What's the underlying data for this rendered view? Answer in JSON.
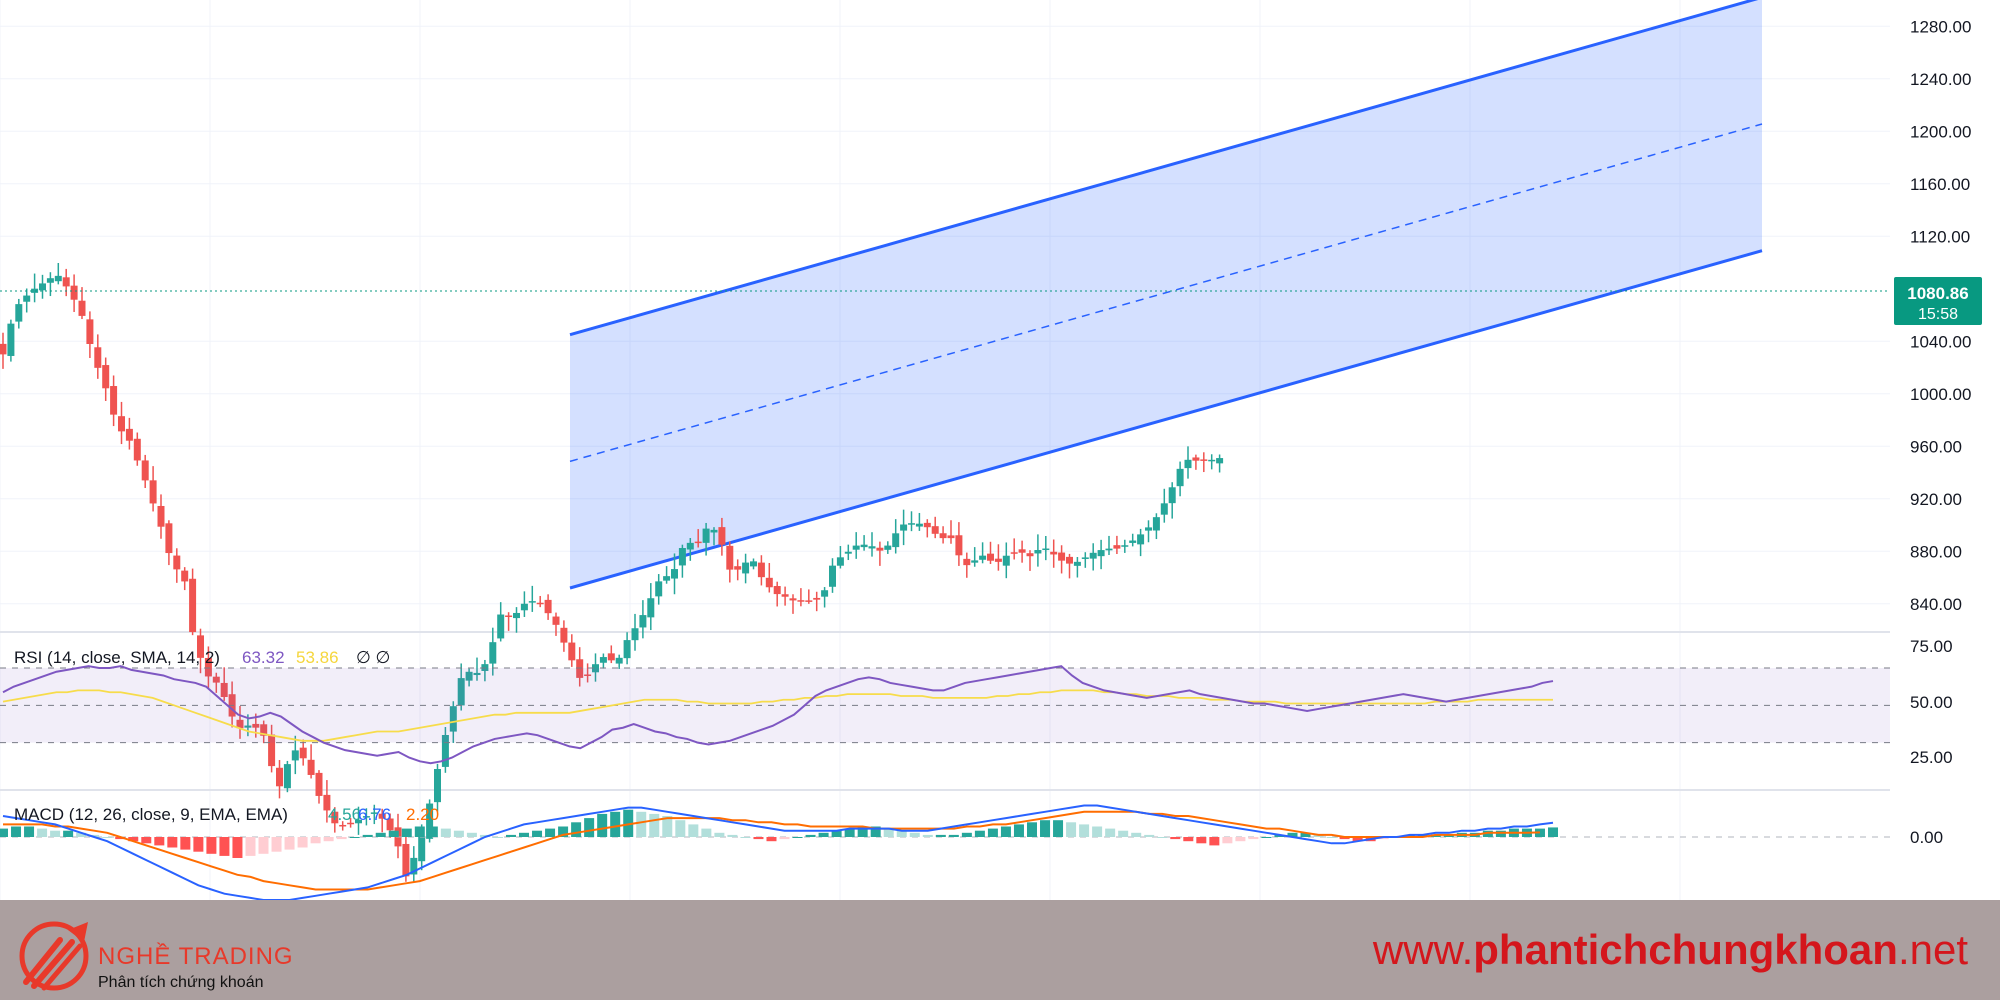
{
  "price_axis": {
    "labels": [
      "1280.00",
      "1240.00",
      "1200.00",
      "1160.00",
      "1120.00",
      "1040.00",
      "1000.00",
      "960.00",
      "920.00",
      "880.00",
      "840.00"
    ],
    "values": [
      1280,
      1240,
      1200,
      1160,
      1120,
      1040,
      1000,
      960,
      920,
      880,
      840
    ]
  },
  "last_price": {
    "value": "1080.86",
    "countdown": "15:58",
    "color": "#089981"
  },
  "colors": {
    "up": "#26a69a",
    "down": "#ef5350",
    "channel": "#2962ff",
    "rsi": "#7e57c2",
    "rsi_ma": "#f7dc4b",
    "macd": "#2962ff",
    "signal": "#ff6d00"
  },
  "rsi_pane": {
    "label": "RSI (14, close, SMA, 14, 2)",
    "value": "63.32",
    "ma_value": "53.86",
    "extra": "∅ ∅",
    "axis_labels": [
      "75.00",
      "50.00",
      "25.00"
    ],
    "axis_values": [
      75,
      50,
      25
    ]
  },
  "macd_pane": {
    "label": "MACD (12, 26, close, 9, EMA, EMA)",
    "hist_value": "4.56",
    "macd_value": "6.76",
    "signal_value": "2.20",
    "axis_labels": [
      "0.00"
    ]
  },
  "chart_data": {
    "type": "candlestick",
    "ylim": [
      820,
      1300
    ],
    "price_points": [
      [
        0,
        1030
      ],
      [
        3,
        1065
      ],
      [
        7,
        1078
      ],
      [
        12,
        1088
      ],
      [
        14,
        1090
      ],
      [
        17,
        1078
      ],
      [
        20,
        1060
      ],
      [
        23,
        1028
      ],
      [
        26,
        1005
      ],
      [
        29,
        975
      ],
      [
        32,
        965
      ],
      [
        36,
        935
      ],
      [
        40,
        900
      ],
      [
        43,
        870
      ],
      [
        46,
        860
      ],
      [
        48,
        820
      ],
      [
        50,
        800
      ],
      [
        52,
        785
      ],
      [
        55,
        778
      ],
      [
        58,
        755
      ],
      [
        60,
        745
      ],
      [
        63,
        748
      ],
      [
        66,
        742
      ],
      [
        68,
        718
      ],
      [
        71,
        695
      ],
      [
        73,
        732
      ],
      [
        77,
        720
      ],
      [
        80,
        695
      ],
      [
        84,
        673
      ],
      [
        87,
        670
      ],
      [
        90,
        675
      ],
      [
        95,
        682
      ],
      [
        100,
        660
      ],
      [
        102,
        630
      ],
      [
        106,
        658
      ],
      [
        109,
        696
      ],
      [
        112,
        736
      ],
      [
        114,
        758
      ],
      [
        117,
        790
      ],
      [
        120,
        786
      ],
      [
        123,
        796
      ],
      [
        127,
        838
      ],
      [
        129,
        828
      ],
      [
        133,
        842
      ],
      [
        136,
        842
      ],
      [
        140,
        827
      ],
      [
        144,
        800
      ],
      [
        147,
        780
      ],
      [
        152,
        800
      ],
      [
        156,
        795
      ],
      [
        158,
        810
      ],
      [
        162,
        828
      ],
      [
        167,
        860
      ],
      [
        170,
        862
      ],
      [
        173,
        886
      ],
      [
        177,
        887
      ],
      [
        179,
        900
      ],
      [
        182,
        893
      ],
      [
        184,
        866
      ],
      [
        187,
        866
      ],
      [
        190,
        876
      ],
      [
        193,
        858
      ],
      [
        196,
        848
      ],
      [
        199,
        845
      ],
      [
        201,
        842
      ],
      [
        205,
        842
      ],
      [
        208,
        844
      ],
      [
        211,
        872
      ],
      [
        214,
        878
      ],
      [
        217,
        885
      ],
      [
        220,
        885
      ],
      [
        223,
        880
      ],
      [
        225,
        885
      ],
      [
        228,
        900
      ],
      [
        232,
        902
      ],
      [
        235,
        898
      ],
      [
        238,
        890
      ],
      [
        241,
        890
      ],
      [
        244,
        868
      ],
      [
        249,
        877
      ],
      [
        252,
        870
      ],
      [
        255,
        877
      ],
      [
        258,
        880
      ],
      [
        261,
        876
      ],
      [
        264,
        884
      ],
      [
        268,
        875
      ],
      [
        270,
        870
      ],
      [
        273,
        872
      ],
      [
        277,
        879
      ],
      [
        280,
        882
      ],
      [
        283,
        882
      ],
      [
        286,
        886
      ],
      [
        289,
        893
      ],
      [
        292,
        901
      ],
      [
        296,
        922
      ],
      [
        300,
        950
      ],
      [
        303,
        949
      ],
      [
        306,
        949
      ],
      [
        309,
        951
      ]
    ],
    "channel": {
      "upper": [
        [
          1,
          1045
        ],
        [
          236,
          1302
        ]
      ],
      "lower": [
        [
          1,
          852
        ],
        [
          236,
          1109
        ]
      ],
      "mid": [
        [
          1,
          948.5
        ],
        [
          236,
          1205.5
        ]
      ]
    },
    "rsi": {
      "ylim": [
        10,
        85
      ],
      "values": [
        57,
        60,
        62,
        64,
        66,
        68,
        69,
        70,
        71,
        70,
        70,
        71,
        69,
        68,
        67,
        66,
        64,
        63,
        62,
        60,
        55,
        50,
        45,
        43,
        44,
        46,
        44,
        40,
        36,
        33,
        30,
        28,
        26,
        25,
        24,
        23,
        24,
        25,
        22,
        20,
        19,
        20,
        22,
        25,
        28,
        30,
        32,
        33,
        34,
        35,
        34,
        32,
        30,
        28,
        27,
        30,
        33,
        37,
        38,
        40,
        38,
        36,
        35,
        33,
        32,
        30,
        29,
        30,
        31,
        33,
        35,
        37,
        39,
        42,
        45,
        50,
        55,
        58,
        60,
        62,
        64,
        65,
        64,
        62,
        61,
        60,
        59,
        58,
        58,
        60,
        62,
        63,
        64,
        65,
        66,
        67,
        68,
        69,
        70,
        71,
        66,
        62,
        60,
        58,
        57,
        56,
        55,
        54,
        55,
        56,
        57,
        58,
        56,
        55,
        54,
        53,
        52,
        51,
        51,
        50,
        49,
        48,
        47,
        48,
        49,
        50,
        51,
        52,
        53,
        54,
        55,
        56,
        55,
        54,
        53,
        52,
        53,
        54,
        55,
        56,
        57,
        58,
        59,
        60,
        62,
        63
      ],
      "ma_values": [
        52,
        53,
        54,
        55,
        56,
        57,
        57,
        58,
        58,
        58,
        57,
        57,
        56,
        55,
        54,
        52,
        50,
        48,
        46,
        44,
        42,
        40,
        38,
        36,
        35,
        34,
        33,
        32,
        31,
        31,
        31,
        32,
        33,
        34,
        35,
        36,
        36,
        36,
        37,
        38,
        39,
        40,
        41,
        42,
        43,
        44,
        45,
        45,
        46,
        46,
        46,
        46,
        46,
        46,
        47,
        48,
        49,
        50,
        51,
        52,
        53,
        53,
        53,
        53,
        52,
        52,
        51,
        51,
        51,
        51,
        51,
        52,
        52,
        53,
        53,
        54,
        54,
        55,
        55,
        56,
        56,
        56,
        56,
        56,
        55,
        55,
        55,
        54,
        54,
        54,
        54,
        54,
        54,
        55,
        55,
        56,
        56,
        57,
        57,
        58,
        58,
        58,
        58,
        57,
        57,
        56,
        56,
        55,
        55,
        55,
        54,
        54,
        54,
        53,
        53,
        53,
        52,
        52,
        52,
        52,
        51,
        51,
        51,
        51,
        51,
        51,
        51,
        51,
        51,
        51,
        51,
        51,
        51,
        51,
        52,
        52,
        52,
        52,
        53,
        53,
        53,
        53,
        53,
        53,
        53,
        53
      ]
    },
    "macd": {
      "ylim": [
        -30,
        20
      ],
      "hist": [
        4,
        5,
        5,
        4,
        3,
        3,
        2,
        1,
        0,
        -1,
        -2,
        -3,
        -4,
        -5,
        -6,
        -7,
        -8,
        -9,
        -10,
        -9,
        -8,
        -7,
        -6,
        -5,
        -3,
        -2,
        -1,
        0,
        1,
        2,
        3,
        4,
        5,
        5,
        4,
        3,
        2,
        1,
        0,
        1,
        2,
        3,
        4,
        5,
        7,
        9,
        11,
        12,
        13,
        12,
        11,
        10,
        8,
        6,
        4,
        2,
        1,
        0,
        -1,
        -2,
        -1,
        0,
        1,
        2,
        3,
        4,
        5,
        5,
        4,
        3,
        2,
        1,
        1,
        1,
        2,
        3,
        4,
        5,
        6,
        7,
        8,
        8,
        7,
        6,
        5,
        4,
        3,
        2,
        1,
        0,
        -1,
        -2,
        -3,
        -4,
        -3,
        -2,
        -1,
        0,
        1,
        2,
        2,
        1,
        0,
        -1,
        -2,
        -2,
        -1,
        0,
        1,
        1,
        1,
        1,
        2,
        2,
        3,
        3,
        4,
        4,
        4,
        4.56
      ],
      "macd": [
        10,
        9,
        8,
        7,
        6,
        4,
        2,
        0,
        -2,
        -5,
        -8,
        -11,
        -14,
        -17,
        -20,
        -23,
        -25,
        -27,
        -28,
        -29,
        -30,
        -30,
        -30,
        -29,
        -28,
        -27,
        -26,
        -25,
        -24,
        -22,
        -20,
        -18,
        -15,
        -12,
        -9,
        -6,
        -3,
        0,
        2,
        4,
        6,
        7,
        8,
        9,
        10,
        11,
        12,
        13,
        14,
        14,
        13,
        12,
        11,
        10,
        9,
        8,
        7,
        6,
        5,
        4,
        3,
        3,
        3,
        3,
        3,
        4,
        4,
        4,
        4,
        3,
        3,
        3,
        4,
        5,
        6,
        7,
        8,
        9,
        10,
        11,
        12,
        13,
        14,
        15,
        15,
        14,
        13,
        12,
        11,
        10,
        9,
        8,
        7,
        6,
        5,
        4,
        3,
        2,
        1,
        0,
        -1,
        -2,
        -3,
        -3,
        -2,
        -1,
        0,
        0,
        1,
        1,
        2,
        2,
        3,
        3,
        4,
        4,
        5,
        5,
        6,
        6.76
      ],
      "signal": [
        6,
        6,
        6,
        6,
        5,
        5,
        4,
        3,
        2,
        0,
        -2,
        -4,
        -6,
        -8,
        -10,
        -12,
        -14,
        -16,
        -18,
        -19,
        -21,
        -22,
        -23,
        -24,
        -25,
        -25,
        -25,
        -25,
        -25,
        -24,
        -23,
        -22,
        -21,
        -19,
        -17,
        -15,
        -13,
        -11,
        -9,
        -7,
        -5,
        -3,
        -1,
        1,
        2,
        3,
        4,
        5,
        6,
        7,
        8,
        9,
        9,
        9,
        9,
        9,
        8,
        8,
        7,
        7,
        6,
        6,
        5,
        5,
        5,
        5,
        5,
        4,
        4,
        4,
        4,
        4,
        4,
        4,
        5,
        5,
        6,
        6,
        7,
        8,
        9,
        10,
        11,
        12,
        12,
        12,
        12,
        12,
        11,
        11,
        10,
        10,
        9,
        8,
        7,
        6,
        5,
        4,
        4,
        3,
        2,
        1,
        1,
        0,
        0,
        0,
        0,
        0,
        0,
        0,
        1,
        1,
        1,
        1,
        2,
        2,
        2,
        2,
        2.2
      ]
    }
  },
  "footer": {
    "brand_name": "NGHỀ TRADING",
    "brand_tagline": "Phân tích chứng khoán",
    "site_prefix": "www.",
    "site_bold": "phantichchungkhoan",
    "site_suffix": ".net"
  }
}
